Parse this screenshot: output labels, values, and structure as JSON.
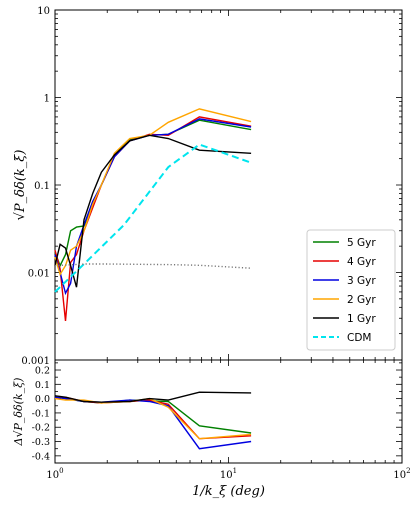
{
  "chart_data": [
    {
      "type": "line",
      "title": "",
      "xlabel": "1/k_ξ (deg)",
      "ylabel": "√P_δδ(k_ξ)",
      "xscale": "log",
      "yscale": "log",
      "xlim": [
        1,
        100
      ],
      "ylim": [
        0.001,
        10
      ],
      "x_tick_labels": [
        "10^0",
        "10^1",
        "10^2"
      ],
      "y_tick_labels": [
        "0.001",
        "0.01",
        "0.1",
        "1",
        "10"
      ],
      "grid": false,
      "legend_position": "bottom-right",
      "series": [
        {
          "name": "5 Gyr",
          "color": "#008000",
          "style": "solid",
          "x": [
            1.0,
            1.07,
            1.15,
            1.23,
            1.33,
            1.47,
            1.65,
            1.85,
            2.2,
            2.7,
            3.5,
            4.5,
            6.8,
            13.5
          ],
          "y": [
            0.017,
            0.012,
            0.016,
            0.03,
            0.033,
            0.034,
            0.06,
            0.1,
            0.22,
            0.33,
            0.37,
            0.38,
            0.55,
            0.43
          ]
        },
        {
          "name": "4 Gyr",
          "color": "#e60000",
          "style": "solid",
          "x": [
            1.0,
            1.07,
            1.15,
            1.23,
            1.33,
            1.47,
            1.65,
            1.85,
            2.2,
            2.7,
            3.5,
            4.5,
            6.8,
            13.5
          ],
          "y": [
            0.018,
            0.011,
            0.0028,
            0.013,
            0.016,
            0.03,
            0.055,
            0.1,
            0.21,
            0.32,
            0.38,
            0.37,
            0.6,
            0.47
          ]
        },
        {
          "name": "3 Gyr",
          "color": "#0000e0",
          "style": "solid",
          "x": [
            1.0,
            1.07,
            1.15,
            1.23,
            1.33,
            1.47,
            1.65,
            1.85,
            2.2,
            2.7,
            3.5,
            4.5,
            6.8,
            13.5
          ],
          "y": [
            0.016,
            0.01,
            0.0058,
            0.0075,
            0.02,
            0.035,
            0.065,
            0.1,
            0.21,
            0.32,
            0.37,
            0.38,
            0.57,
            0.46
          ]
        },
        {
          "name": "2 Gyr",
          "color": "#ffa500",
          "style": "solid",
          "x": [
            1.0,
            1.07,
            1.15,
            1.23,
            1.33,
            1.47,
            1.65,
            1.85,
            2.2,
            2.7,
            3.5,
            4.5,
            6.8,
            13.5
          ],
          "y": [
            0.015,
            0.0095,
            0.012,
            0.018,
            0.02,
            0.03,
            0.06,
            0.1,
            0.23,
            0.34,
            0.37,
            0.52,
            0.74,
            0.53
          ]
        },
        {
          "name": "1 Gyr",
          "color": "#000000",
          "style": "solid",
          "x": [
            1.0,
            1.07,
            1.15,
            1.23,
            1.33,
            1.47,
            1.65,
            1.85,
            2.2,
            2.7,
            3.5,
            4.5,
            6.8,
            13.5
          ],
          "y": [
            0.012,
            0.021,
            0.019,
            0.012,
            0.0068,
            0.04,
            0.08,
            0.14,
            0.22,
            0.32,
            0.37,
            0.34,
            0.25,
            0.23
          ]
        },
        {
          "name": "CDM",
          "color": "#00e5ee",
          "style": "dashed",
          "x": [
            1.0,
            1.5,
            2.5,
            4.5,
            6.8,
            13.5
          ],
          "y": [
            0.006,
            0.013,
            0.035,
            0.16,
            0.29,
            0.18
          ]
        },
        {
          "name": "",
          "color": "#777777",
          "style": "dotted",
          "x": [
            1.0,
            1.5,
            2.0,
            3.0,
            4.5,
            6.8,
            13.5
          ],
          "y": [
            0.012,
            0.0125,
            0.0125,
            0.0124,
            0.0123,
            0.0121,
            0.0112
          ]
        }
      ]
    },
    {
      "type": "line",
      "title": "",
      "xlabel": "1/k_ξ (deg)",
      "ylabel": "Δ√P_δδ(k_ξ)",
      "xscale": "log",
      "xlim": [
        1,
        100
      ],
      "ylim": [
        -0.45,
        0.27
      ],
      "y_tick_labels": [
        "0.2",
        "0.1",
        "0.0",
        "-0.1",
        "-0.2",
        "-0.3",
        "-0.4"
      ],
      "grid": false,
      "series": [
        {
          "name": "5 Gyr",
          "color": "#008000",
          "x": [
            1.0,
            1.15,
            1.47,
            1.85,
            2.7,
            3.5,
            4.5,
            6.8,
            13.5
          ],
          "y": [
            0.01,
            0.0,
            -0.02,
            -0.03,
            -0.01,
            -0.015,
            -0.02,
            -0.19,
            -0.24
          ]
        },
        {
          "name": "4 Gyr",
          "color": "#e60000",
          "x": [
            1.0,
            1.15,
            1.47,
            1.85,
            2.7,
            3.5,
            4.5,
            6.8,
            13.5
          ],
          "y": [
            0.005,
            0.01,
            -0.02,
            -0.03,
            -0.02,
            -0.01,
            -0.04,
            -0.28,
            -0.26
          ]
        },
        {
          "name": "3 Gyr",
          "color": "#0000e0",
          "x": [
            1.0,
            1.15,
            1.47,
            1.85,
            2.7,
            3.5,
            4.5,
            6.8,
            13.5
          ],
          "y": [
            0.01,
            0.0,
            -0.02,
            -0.025,
            -0.01,
            -0.02,
            -0.05,
            -0.35,
            -0.3
          ]
        },
        {
          "name": "2 Gyr",
          "color": "#ffa500",
          "x": [
            1.0,
            1.15,
            1.47,
            1.85,
            2.7,
            3.5,
            4.5,
            6.8,
            13.5
          ],
          "y": [
            0.0,
            -0.01,
            -0.01,
            -0.03,
            -0.02,
            0.0,
            -0.06,
            -0.28,
            -0.25
          ]
        },
        {
          "name": "1 Gyr",
          "color": "#000000",
          "x": [
            1.0,
            1.15,
            1.47,
            1.85,
            2.7,
            3.5,
            4.5,
            6.8,
            13.5
          ],
          "y": [
            0.02,
            0.01,
            -0.02,
            -0.025,
            -0.02,
            0.0,
            -0.01,
            0.045,
            0.04
          ]
        }
      ]
    }
  ]
}
